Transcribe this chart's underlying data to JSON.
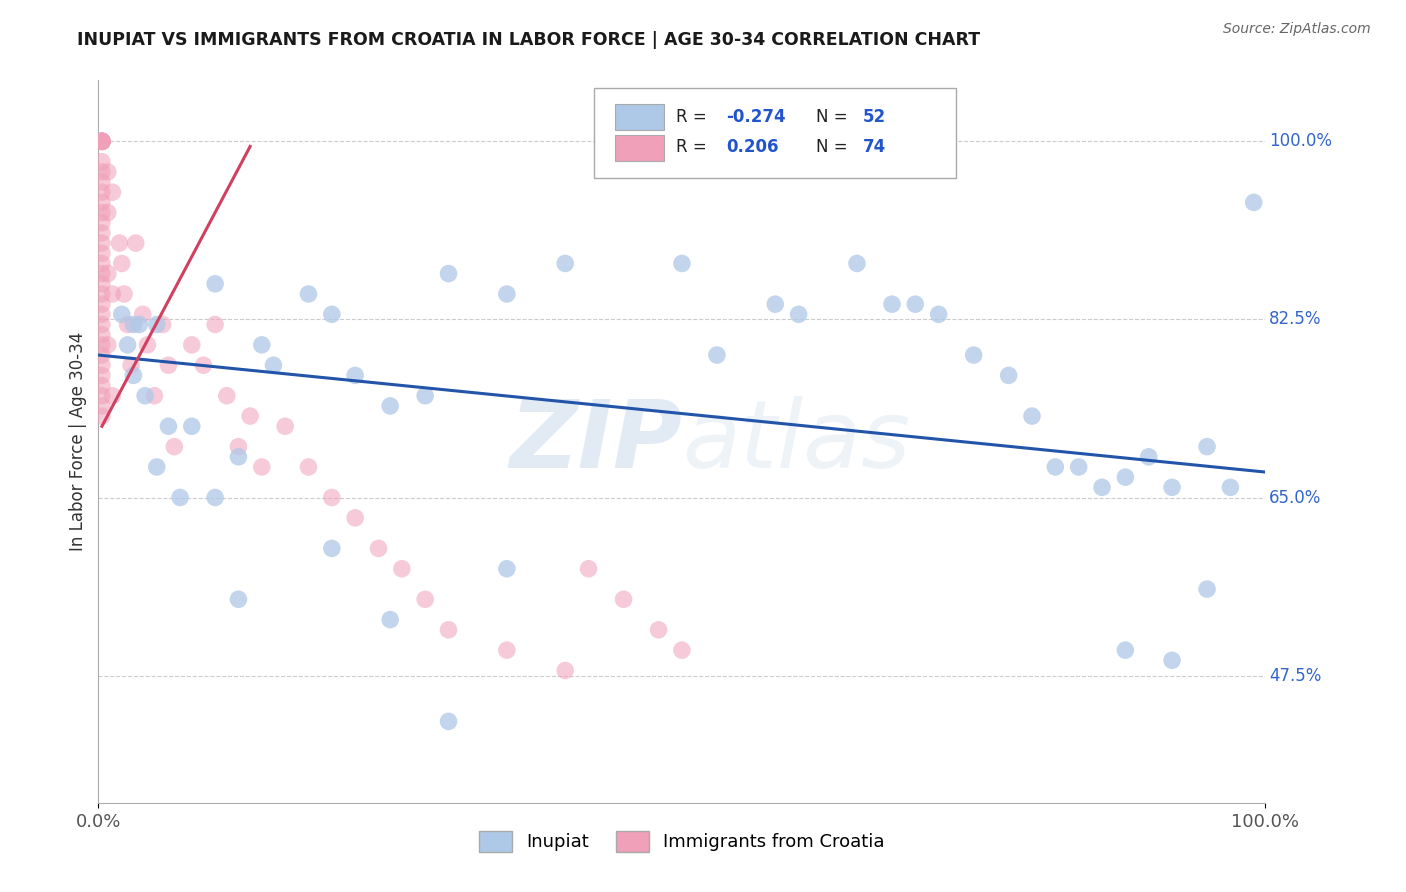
{
  "title": "INUPIAT VS IMMIGRANTS FROM CROATIA IN LABOR FORCE | AGE 30-34 CORRELATION CHART",
  "source_text": "Source: ZipAtlas.com",
  "ylabel": "In Labor Force | Age 30-34",
  "xlim": [
    0.0,
    1.0
  ],
  "ylim": [
    0.35,
    1.06
  ],
  "ytick_vals": [
    0.475,
    0.65,
    0.825,
    1.0
  ],
  "ytick_labels": [
    "47.5%",
    "65.0%",
    "82.5%",
    "100.0%"
  ],
  "xtick_vals": [
    0.0,
    1.0
  ],
  "xtick_labels": [
    "0.0%",
    "100.0%"
  ],
  "blue_color": "#aec8e8",
  "pink_color": "#f0a0b8",
  "blue_line_color": "#2255aa",
  "pink_line_color": "#d04060",
  "watermark_color": "#d8e4f0",
  "inupiat_x": [
    0.02,
    0.025,
    0.03,
    0.035,
    0.04,
    0.05,
    0.06,
    0.07,
    0.1,
    0.14,
    0.18,
    0.2,
    0.22,
    0.25,
    0.28,
    0.3,
    0.35,
    0.4,
    0.5,
    0.53,
    0.58,
    0.6,
    0.65,
    0.68,
    0.7,
    0.72,
    0.75,
    0.78,
    0.8,
    0.82,
    0.84,
    0.86,
    0.88,
    0.9,
    0.92,
    0.95,
    0.97,
    0.99,
    0.03,
    0.05,
    0.08,
    0.1,
    0.12,
    0.15,
    0.2,
    0.25,
    0.3,
    0.35,
    0.88,
    0.92,
    0.95,
    0.12
  ],
  "inupiat_y": [
    0.83,
    0.8,
    0.77,
    0.82,
    0.75,
    0.68,
    0.72,
    0.65,
    0.86,
    0.8,
    0.85,
    0.83,
    0.77,
    0.74,
    0.75,
    0.87,
    0.85,
    0.88,
    0.88,
    0.79,
    0.84,
    0.83,
    0.88,
    0.84,
    0.84,
    0.83,
    0.79,
    0.77,
    0.73,
    0.68,
    0.68,
    0.66,
    0.67,
    0.69,
    0.66,
    0.7,
    0.66,
    0.94,
    0.82,
    0.82,
    0.72,
    0.65,
    0.69,
    0.78,
    0.6,
    0.53,
    0.43,
    0.58,
    0.5,
    0.49,
    0.56,
    0.55
  ],
  "croatia_x": [
    0.003,
    0.003,
    0.003,
    0.003,
    0.003,
    0.003,
    0.003,
    0.003,
    0.003,
    0.003,
    0.003,
    0.003,
    0.003,
    0.003,
    0.003,
    0.003,
    0.003,
    0.003,
    0.003,
    0.003,
    0.003,
    0.003,
    0.003,
    0.003,
    0.003,
    0.003,
    0.003,
    0.003,
    0.003,
    0.003,
    0.003,
    0.003,
    0.003,
    0.003,
    0.008,
    0.008,
    0.008,
    0.008,
    0.012,
    0.012,
    0.012,
    0.018,
    0.02,
    0.022,
    0.025,
    0.028,
    0.032,
    0.038,
    0.042,
    0.048,
    0.055,
    0.06,
    0.065,
    0.08,
    0.09,
    0.1,
    0.11,
    0.12,
    0.13,
    0.14,
    0.16,
    0.18,
    0.2,
    0.22,
    0.24,
    0.26,
    0.28,
    0.3,
    0.35,
    0.4,
    0.42,
    0.45,
    0.48,
    0.5
  ],
  "croatia_y": [
    1.0,
    1.0,
    1.0,
    1.0,
    1.0,
    1.0,
    1.0,
    1.0,
    0.98,
    0.97,
    0.96,
    0.95,
    0.94,
    0.93,
    0.92,
    0.91,
    0.9,
    0.89,
    0.88,
    0.87,
    0.86,
    0.85,
    0.84,
    0.83,
    0.82,
    0.81,
    0.8,
    0.79,
    0.78,
    0.77,
    0.76,
    0.75,
    0.74,
    0.73,
    0.97,
    0.93,
    0.87,
    0.8,
    0.95,
    0.85,
    0.75,
    0.9,
    0.88,
    0.85,
    0.82,
    0.78,
    0.9,
    0.83,
    0.8,
    0.75,
    0.82,
    0.78,
    0.7,
    0.8,
    0.78,
    0.82,
    0.75,
    0.7,
    0.73,
    0.68,
    0.72,
    0.68,
    0.65,
    0.63,
    0.6,
    0.58,
    0.55,
    0.52,
    0.5,
    0.48,
    0.58,
    0.55,
    0.52,
    0.5
  ],
  "blue_trendline_x": [
    0.0,
    1.0
  ],
  "blue_trendline_y": [
    0.79,
    0.675
  ],
  "pink_trendline_x": [
    0.003,
    0.13
  ],
  "pink_trendline_y": [
    0.72,
    0.995
  ]
}
